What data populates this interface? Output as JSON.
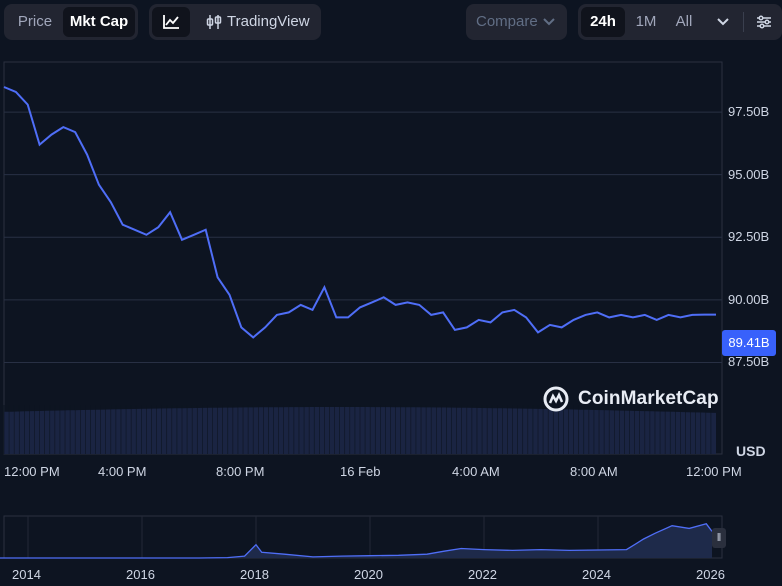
{
  "toolbar": {
    "price_tab": "Price",
    "mktcap_tab": "Mkt Cap",
    "tradingview_label": "TradingView",
    "compare_label": "Compare",
    "range_24h": "24h",
    "range_1m": "1M",
    "range_all": "All"
  },
  "colors": {
    "background": "#0d1421",
    "line": "#4f6ef7",
    "badge": "#3861fb",
    "volume": "#1a2442"
  },
  "chart_data": [
    {
      "type": "line",
      "y_ticks": [
        "97.50B",
        "95.00B",
        "92.50B",
        "90.00B",
        "87.50B"
      ],
      "x_ticks": [
        "12:00 PM",
        "4:00 PM",
        "8:00 PM",
        "16 Feb",
        "4:00 AM",
        "8:00 AM",
        "12:00 PM"
      ],
      "ylim": [
        86.0,
        99.5
      ],
      "unit": "USD",
      "current_value": "89.41B",
      "series": [
        {
          "x": [
            0,
            0.4,
            0.8,
            1.2,
            1.6,
            2.0,
            2.4,
            2.8,
            3.2,
            3.6,
            4.0,
            4.4,
            4.8,
            5.2,
            5.6,
            6.0,
            6.4,
            6.8,
            7.2,
            7.6,
            8.0,
            8.4,
            8.8,
            9.2,
            9.6,
            10.0,
            10.4,
            10.8,
            11.2,
            11.6,
            12.0,
            12.4,
            12.8,
            13.2,
            13.6,
            14.0,
            14.4,
            14.8,
            15.2,
            15.6,
            16.0,
            16.4,
            16.8,
            17.2,
            17.6,
            18.0,
            18.4,
            18.8,
            19.2,
            19.6,
            20.0,
            20.4,
            20.8,
            21.2,
            21.6,
            22.0,
            22.4,
            22.8,
            23.2,
            23.6,
            24.0
          ],
          "y": [
            98.5,
            98.3,
            97.8,
            96.2,
            96.6,
            96.9,
            96.7,
            95.8,
            94.6,
            93.9,
            93.0,
            92.8,
            92.6,
            92.9,
            93.5,
            92.4,
            92.6,
            92.8,
            90.9,
            90.2,
            88.9,
            88.5,
            88.9,
            89.4,
            89.5,
            89.8,
            89.6,
            90.5,
            89.3,
            89.3,
            89.7,
            89.9,
            90.1,
            89.8,
            89.9,
            89.8,
            89.4,
            89.5,
            88.8,
            88.9,
            89.2,
            89.1,
            89.5,
            89.6,
            89.3,
            88.7,
            89.0,
            88.9,
            89.2,
            89.4,
            89.5,
            89.3,
            89.4,
            89.3,
            89.4,
            89.2,
            89.4,
            89.3,
            89.4,
            89.41,
            89.41
          ]
        }
      ]
    },
    {
      "type": "area",
      "x_ticks": [
        "2014",
        "2016",
        "2018",
        "2020",
        "2022",
        "2024",
        "2026"
      ],
      "x": [
        2013.5,
        2014.5,
        2015.5,
        2016.5,
        2017.0,
        2017.5,
        2017.8,
        2018.0,
        2018.1,
        2018.5,
        2019.0,
        2019.5,
        2020.0,
        2020.5,
        2021.0,
        2021.3,
        2021.6,
        2022.0,
        2022.5,
        2023.0,
        2023.5,
        2024.0,
        2024.5,
        2024.8,
        2025.0,
        2025.3,
        2025.6,
        2025.9,
        2026.0
      ],
      "values": [
        0.0,
        0.0,
        0.0,
        0.0,
        0.0,
        0.01,
        0.05,
        0.35,
        0.15,
        0.1,
        0.03,
        0.05,
        0.06,
        0.07,
        0.1,
        0.18,
        0.25,
        0.22,
        0.2,
        0.22,
        0.2,
        0.21,
        0.22,
        0.5,
        0.65,
        0.85,
        0.78,
        0.9,
        0.7
      ]
    }
  ]
}
